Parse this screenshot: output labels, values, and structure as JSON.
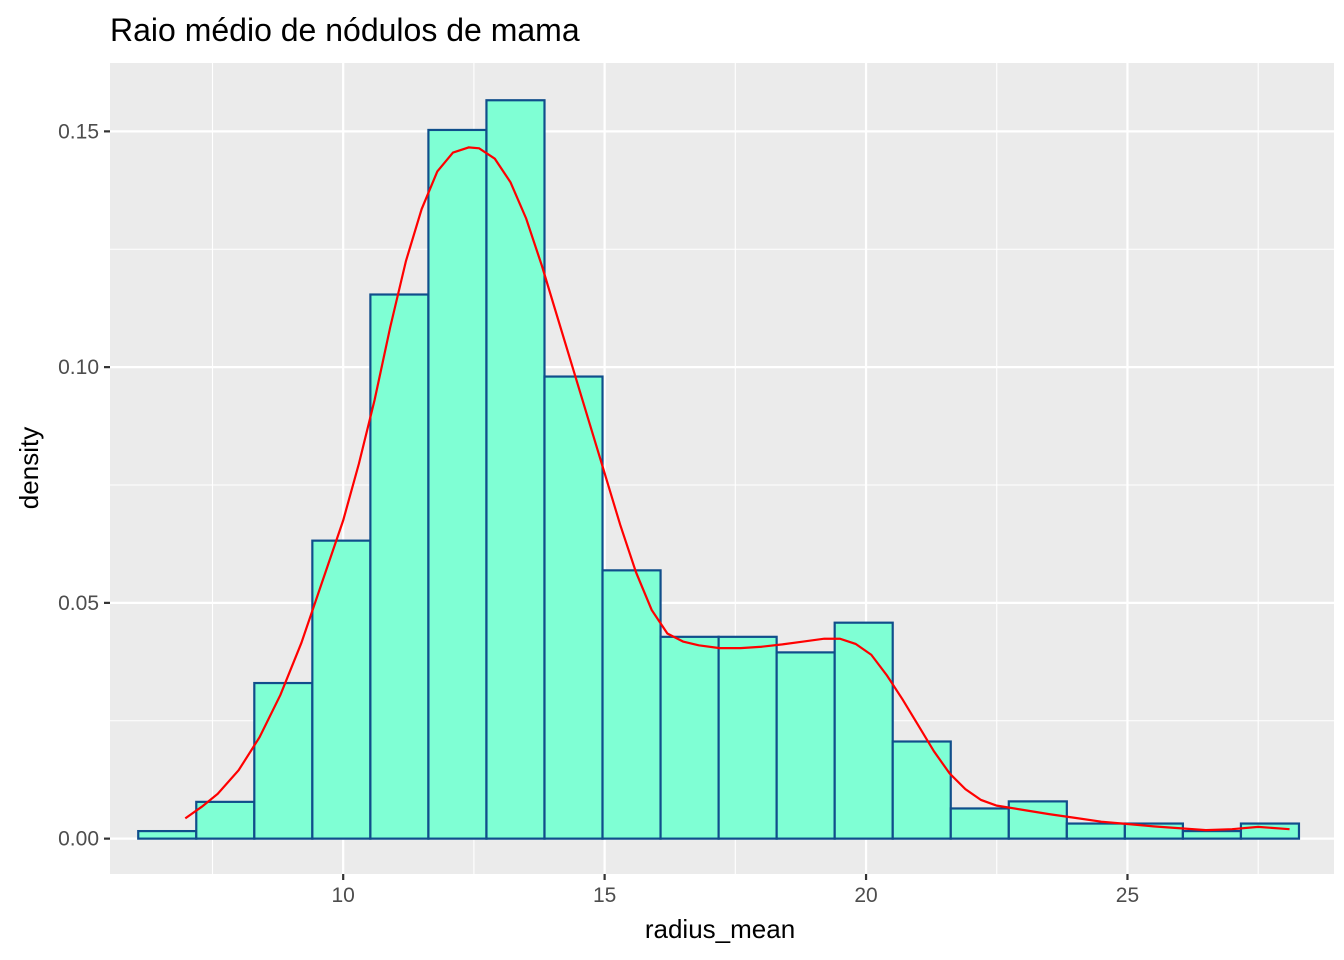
{
  "chart_data": {
    "type": "bar",
    "subtype": "histogram",
    "title": "Raio médio de nódulos de mama",
    "xlabel": "radius_mean",
    "ylabel": "density",
    "xlim": [
      5.54,
      28.95
    ],
    "ylim": [
      -0.0075,
      0.1645
    ],
    "x_ticks": [
      10,
      15,
      20,
      25
    ],
    "x_tick_labels": [
      "10",
      "15",
      "20",
      "25"
    ],
    "y_ticks": [
      0.0,
      0.05,
      0.1,
      0.15
    ],
    "y_tick_labels": [
      "0.00",
      "0.05",
      "0.10",
      "0.15"
    ],
    "grid": true,
    "background": "#EBEBEB",
    "bar_fill": "#7FFFD4",
    "bar_outline": "#104E8B",
    "density_color": "#FF0000",
    "bins": [
      {
        "x0": 6.08,
        "x1": 7.19,
        "value": 0.0016
      },
      {
        "x0": 7.19,
        "x1": 8.3,
        "value": 0.0078
      },
      {
        "x0": 8.3,
        "x1": 9.41,
        "value": 0.033
      },
      {
        "x0": 9.41,
        "x1": 10.52,
        "value": 0.0632
      },
      {
        "x0": 10.52,
        "x1": 11.63,
        "value": 0.1154
      },
      {
        "x0": 11.63,
        "x1": 12.74,
        "value": 0.1503
      },
      {
        "x0": 12.74,
        "x1": 13.85,
        "value": 0.1566
      },
      {
        "x0": 13.85,
        "x1": 14.96,
        "value": 0.098
      },
      {
        "x0": 14.96,
        "x1": 16.07,
        "value": 0.0569
      },
      {
        "x0": 16.07,
        "x1": 17.18,
        "value": 0.0428
      },
      {
        "x0": 17.18,
        "x1": 18.29,
        "value": 0.0428
      },
      {
        "x0": 18.29,
        "x1": 19.4,
        "value": 0.0395
      },
      {
        "x0": 19.4,
        "x1": 20.51,
        "value": 0.0458
      },
      {
        "x0": 20.51,
        "x1": 21.62,
        "value": 0.0206
      },
      {
        "x0": 21.62,
        "x1": 22.73,
        "value": 0.0064
      },
      {
        "x0": 22.73,
        "x1": 23.84,
        "value": 0.0079
      },
      {
        "x0": 23.84,
        "x1": 24.95,
        "value": 0.0032
      },
      {
        "x0": 24.95,
        "x1": 26.06,
        "value": 0.0032
      },
      {
        "x0": 26.06,
        "x1": 27.17,
        "value": 0.0016
      },
      {
        "x0": 27.17,
        "x1": 28.28,
        "value": 0.0032
      }
    ],
    "density_curve": {
      "x": [
        6.98,
        7.3,
        7.6,
        8.0,
        8.4,
        8.8,
        9.2,
        9.6,
        10.0,
        10.3,
        10.6,
        10.9,
        11.2,
        11.5,
        11.8,
        12.1,
        12.4,
        12.6,
        12.9,
        13.2,
        13.5,
        13.8,
        14.1,
        14.4,
        14.7,
        15.0,
        15.3,
        15.6,
        15.9,
        16.2,
        16.5,
        16.8,
        17.2,
        17.6,
        18.0,
        18.4,
        18.8,
        19.2,
        19.5,
        19.8,
        20.1,
        20.4,
        20.7,
        21.0,
        21.3,
        21.6,
        21.9,
        22.2,
        22.5,
        23.0,
        23.5,
        24.0,
        24.5,
        25.0,
        25.5,
        26.0,
        26.5,
        27.0,
        27.5,
        28.1
      ],
      "y": [
        0.0043,
        0.0068,
        0.0095,
        0.0145,
        0.0215,
        0.0305,
        0.0415,
        0.0545,
        0.0675,
        0.0795,
        0.093,
        0.1085,
        0.1225,
        0.1335,
        0.1415,
        0.1455,
        0.1466,
        0.1464,
        0.1442,
        0.1392,
        0.1315,
        0.1215,
        0.1105,
        0.0995,
        0.0885,
        0.0775,
        0.0665,
        0.0565,
        0.0485,
        0.0435,
        0.0418,
        0.041,
        0.0404,
        0.0404,
        0.0407,
        0.0412,
        0.0418,
        0.0424,
        0.0424,
        0.0413,
        0.039,
        0.0346,
        0.0295,
        0.024,
        0.0185,
        0.0138,
        0.0105,
        0.0082,
        0.007,
        0.0061,
        0.0052,
        0.0044,
        0.0036,
        0.0031,
        0.0026,
        0.0022,
        0.0018,
        0.002,
        0.0025,
        0.002
      ]
    }
  }
}
